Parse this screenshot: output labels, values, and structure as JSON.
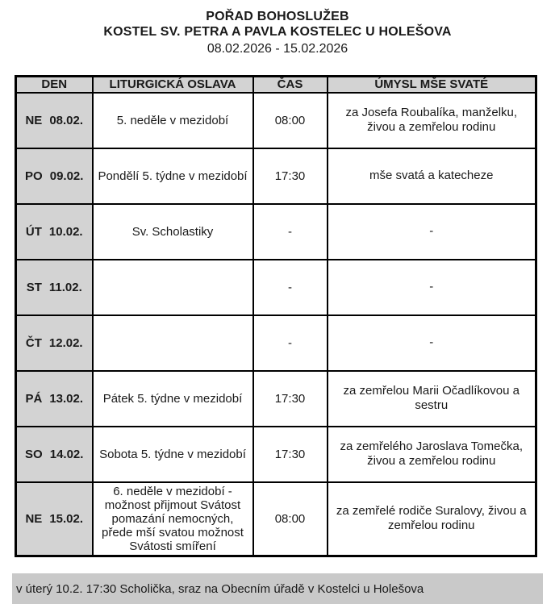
{
  "title": {
    "line1": "POŘAD BOHOSLUŽEB",
    "line2": "KOSTEL SV. PETRA A PAVLA KOSTELEC U HOLEŠOVA",
    "date_range": "08.02.2026 - 15.02.2026"
  },
  "table": {
    "columns": [
      "DEN",
      "LITURGICKÁ OSLAVA",
      "ČAS",
      "ÚMYSL MŠE SVATÉ"
    ],
    "rows": [
      {
        "day": "NE",
        "date": "08.02.",
        "celebration": "5. neděle v mezidobí",
        "time": "08:00",
        "intention": "za Josefa Roubalíka, manželku, živou a zemřelou rodinu"
      },
      {
        "day": "PO",
        "date": "09.02.",
        "celebration": "Pondělí 5. týdne v mezidobí",
        "time": "17:30",
        "intention": "mše svatá a katecheze"
      },
      {
        "day": "ÚT",
        "date": "10.02.",
        "celebration": "Sv. Scholastiky",
        "time": "-",
        "intention": "-"
      },
      {
        "day": "ST",
        "date": "11.02.",
        "celebration": "",
        "time": "-",
        "intention": "-"
      },
      {
        "day": "ČT",
        "date": "12.02.",
        "celebration": "",
        "time": "-",
        "intention": "-"
      },
      {
        "day": "PÁ",
        "date": "13.02.",
        "celebration": "Pátek 5. týdne v mezidobí",
        "time": "17:30",
        "intention": "za zemřelou Marii Očadlíkovou a sestru"
      },
      {
        "day": "SO",
        "date": "14.02.",
        "celebration": "Sobota 5. týdne v mezidobí",
        "time": "17:30",
        "intention": "za zemřelého Jaroslava Tomečka, živou a zemřelou rodinu"
      },
      {
        "day": "NE",
        "date": "15.02.",
        "celebration": "6. neděle v mezidobí - možnost přijmout Svátost pomazání nemocných, přede mší svatou možnost Svátosti smíření",
        "time": "08:00",
        "intention": "za zemřelé rodiče Suralovy, živou a zemřelou rodinu"
      }
    ]
  },
  "footer": {
    "note": "v úterý 10.2. 17:30 Scholička, sraz na Obecním úřadě v Kostelci u Holešova"
  },
  "colors": {
    "cell_gray": "#d3d3d3",
    "footer_gray": "#c9c9c9",
    "border_black": "#000000"
  }
}
